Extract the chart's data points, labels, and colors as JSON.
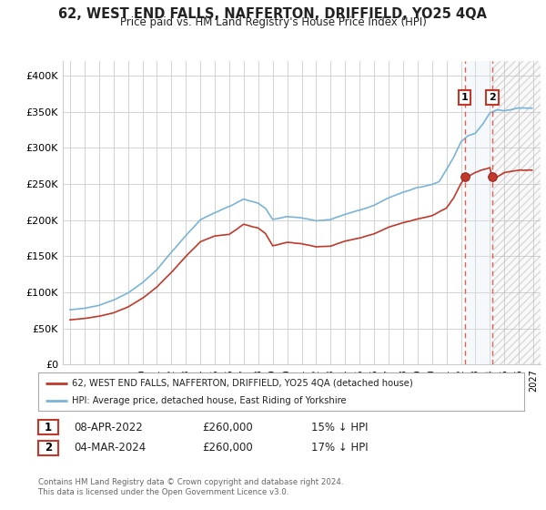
{
  "title": "62, WEST END FALLS, NAFFERTON, DRIFFIELD, YO25 4QA",
  "subtitle": "Price paid vs. HM Land Registry's House Price Index (HPI)",
  "legend_line1": "62, WEST END FALLS, NAFFERTON, DRIFFIELD, YO25 4QA (detached house)",
  "legend_line2": "HPI: Average price, detached house, East Riding of Yorkshire",
  "annotation1_date": "08-APR-2022",
  "annotation1_price": "£260,000",
  "annotation1_hpi": "15% ↓ HPI",
  "annotation2_date": "04-MAR-2024",
  "annotation2_price": "£260,000",
  "annotation2_hpi": "17% ↓ HPI",
  "footer": "Contains HM Land Registry data © Crown copyright and database right 2024.\nThis data is licensed under the Open Government Licence v3.0.",
  "sale1_year": 2022.27,
  "sale2_year": 2024.17,
  "sale1_value": 260000,
  "sale2_value": 260000,
  "hpi_color": "#7ab4d8",
  "price_color": "#c0392b",
  "vline_color": "#e74c3c",
  "shade_color": "#daeaf5",
  "hatch_color": "#aaaaaa",
  "ylim_min": 0,
  "ylim_max": 420000,
  "yticks": [
    0,
    50000,
    100000,
    150000,
    200000,
    250000,
    300000,
    350000,
    400000
  ],
  "ytick_labels": [
    "£0",
    "£50K",
    "£100K",
    "£150K",
    "£200K",
    "£250K",
    "£300K",
    "£350K",
    "£400K"
  ],
  "xmin": 1994.5,
  "xmax": 2027.5,
  "background_color": "#ffffff",
  "grid_color": "#cccccc"
}
